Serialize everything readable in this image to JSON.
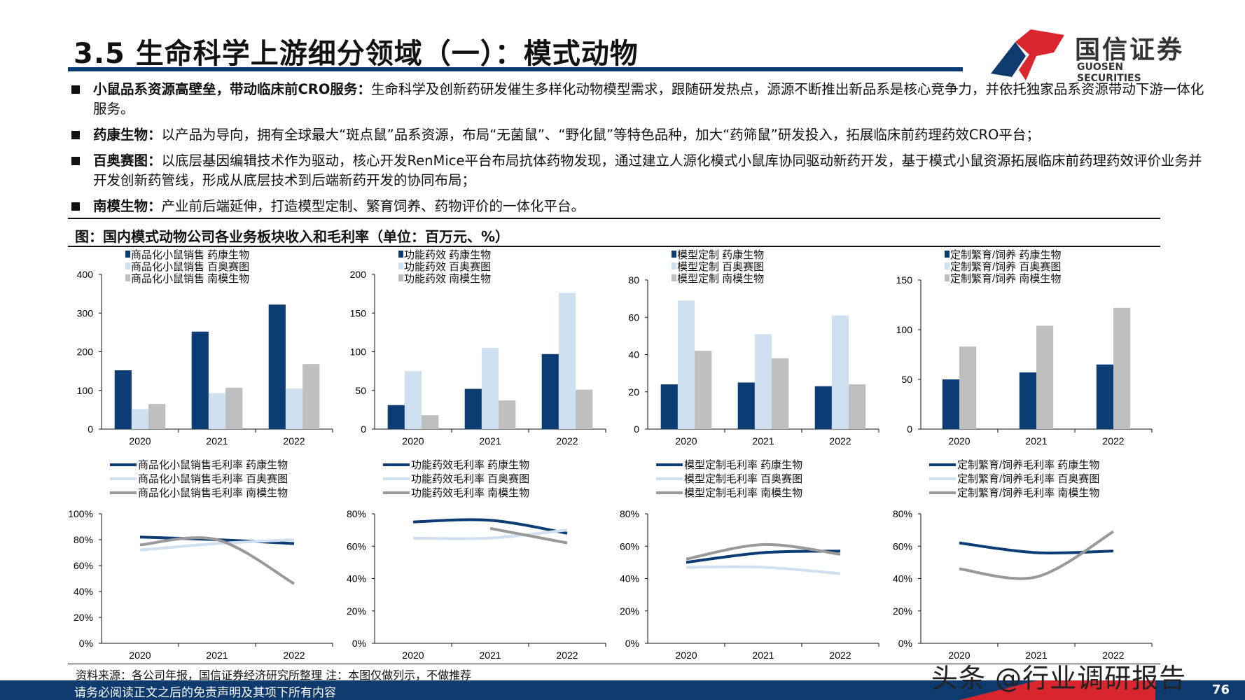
{
  "header": {
    "title": "3.5 生命科学上游细分领域（一）：模式动物",
    "logo_cn": "国信证券",
    "logo_en": "GUOSEN SECURITIES"
  },
  "bullets": [
    {
      "bold": "小鼠品系资源高壁垒，带动临床前CRO服务：",
      "text": "生命科学及创新药研发催生多样化动物模型需求，跟随研发热点，源源不断推出新品系是核心竞争力，并依托独家品系资源带动下游一体化服务。"
    },
    {
      "bold": "药康生物：",
      "text": "以产品为导向，拥有全球最大“斑点鼠”品系资源，布局“无菌鼠”、“野化鼠”等特色品种，加大“药筛鼠”研发投入，拓展临床前药理药效CRO平台；"
    },
    {
      "bold": "百奥赛图：",
      "text": "以底层基因编辑技术作为驱动，核心开发RenMice平台布局抗体药物发现，通过建立人源化模式小鼠库协同驱动新药开发，基于模式小鼠资源拓展临床前药理药效评价业务并开发创新药管线，形成从底层技术到后端新药开发的协同布局；"
    },
    {
      "bold": "南模生物：",
      "text": "产业前后端延伸，打造模型定制、繁育饲养、药物评价的一体化平台。"
    }
  ],
  "figure_title": "图：国内模式动物公司各业务板块收入和毛利率（单位：百万元、%）",
  "colors": {
    "yaokang": "#0b3d74",
    "baiao": "#cfe0f1",
    "nanmo": "#bfbfbf",
    "nanmo_line": "#999999",
    "footer": "#0e3a6e",
    "accent_red": "#d9262e"
  },
  "chart_data": [
    {
      "type": "bar",
      "categories": [
        "2020",
        "2021",
        "2022"
      ],
      "ylim": [
        0,
        400
      ],
      "yticks": [
        0,
        100,
        200,
        300,
        400
      ],
      "legend_placement": "top",
      "series": [
        {
          "name": "商品化小鼠销售 药康生物",
          "values": [
            152,
            252,
            322
          ]
        },
        {
          "name": "商品化小鼠销售 百奥赛图",
          "values": [
            52,
            93,
            105
          ]
        },
        {
          "name": "商品化小鼠销售 南模生物",
          "values": [
            65,
            107,
            168
          ]
        }
      ]
    },
    {
      "type": "bar",
      "categories": [
        "2020",
        "2021",
        "2022"
      ],
      "ylim": [
        0,
        200
      ],
      "yticks": [
        0,
        50,
        100,
        150,
        200
      ],
      "legend_placement": "top",
      "series": [
        {
          "name": "功能药效 药康生物",
          "values": [
            31,
            52,
            97
          ]
        },
        {
          "name": "功能药效 百奥赛图",
          "values": [
            75,
            105,
            176
          ]
        },
        {
          "name": "功能药效 南模生物",
          "values": [
            18,
            37,
            51
          ]
        }
      ]
    },
    {
      "type": "bar",
      "categories": [
        "2020",
        "2021",
        "2022"
      ],
      "ylim": [
        0,
        80
      ],
      "yticks": [
        0,
        20,
        40,
        60,
        80
      ],
      "legend_placement": "top",
      "series": [
        {
          "name": "模型定制 药康生物",
          "values": [
            24,
            25,
            23
          ]
        },
        {
          "name": "模型定制 百奥赛图",
          "values": [
            69,
            51,
            61
          ]
        },
        {
          "name": "模型定制 南模生物",
          "values": [
            42,
            38,
            24
          ]
        }
      ]
    },
    {
      "type": "bar",
      "categories": [
        "2020",
        "2021",
        "2022"
      ],
      "ylim": [
        0,
        150
      ],
      "yticks": [
        0,
        50,
        100,
        150
      ],
      "legend_placement": "top",
      "series": [
        {
          "name": "定制繁育/饲养 药康生物",
          "values": [
            50,
            57,
            65
          ]
        },
        {
          "name": "定制繁育/饲养 百奥赛图",
          "values": [
            null,
            null,
            null
          ]
        },
        {
          "name": "定制繁育/饲养 南模生物",
          "values": [
            83,
            104,
            122
          ]
        }
      ]
    },
    {
      "type": "line",
      "categories": [
        "2020",
        "2021",
        "2022"
      ],
      "ylim": [
        0,
        100
      ],
      "yticks": [
        "0%",
        "20%",
        "40%",
        "60%",
        "80%",
        "100%"
      ],
      "legend_placement": "top",
      "series": [
        {
          "name": "商品化小鼠销售毛利率 药康生物",
          "values": [
            82,
            80,
            77
          ]
        },
        {
          "name": "商品化小鼠销售毛利率 百奥赛图",
          "values": [
            72,
            77,
            80
          ]
        },
        {
          "name": "商品化小鼠销售毛利率 南模生物",
          "values": [
            76,
            80,
            46
          ]
        }
      ]
    },
    {
      "type": "line",
      "categories": [
        "2020",
        "2021",
        "2022"
      ],
      "ylim": [
        0,
        80
      ],
      "yticks": [
        "0%",
        "20%",
        "40%",
        "60%",
        "80%"
      ],
      "legend_placement": "top",
      "series": [
        {
          "name": "功能药效毛利率 药康生物",
          "values": [
            75,
            76,
            68
          ]
        },
        {
          "name": "功能药效毛利率 百奥赛图",
          "values": [
            65,
            65,
            70
          ]
        },
        {
          "name": "功能药效毛利率 南模生物",
          "values": [
            null,
            71,
            62
          ]
        }
      ]
    },
    {
      "type": "line",
      "categories": [
        "2020",
        "2021",
        "2022"
      ],
      "ylim": [
        0,
        80
      ],
      "yticks": [
        "0%",
        "20%",
        "40%",
        "60%",
        "80%"
      ],
      "legend_placement": "top",
      "series": [
        {
          "name": "模型定制毛利率 药康生物",
          "values": [
            50,
            56,
            57
          ]
        },
        {
          "name": "模型定制毛利率 百奥赛图",
          "values": [
            47,
            47,
            43
          ]
        },
        {
          "name": "模型定制毛利率 南模生物",
          "values": [
            52,
            61,
            55
          ]
        }
      ]
    },
    {
      "type": "line",
      "categories": [
        "2020",
        "2021",
        "2022"
      ],
      "ylim": [
        0,
        80
      ],
      "yticks": [
        "0%",
        "20%",
        "40%",
        "60%",
        "80%"
      ],
      "legend_placement": "top",
      "series": [
        {
          "name": "定制繁育/饲养毛利率 药康生物",
          "values": [
            62,
            56,
            57
          ]
        },
        {
          "name": "定制繁育/饲养毛利率 百奥赛图",
          "values": [
            null,
            null,
            null
          ]
        },
        {
          "name": "定制繁育/饲养毛利率 南模生物",
          "values": [
            46,
            41,
            69
          ]
        }
      ]
    }
  ],
  "source": "资料来源：各公司年报，国信证券经济研究所整理 注：本图仅做列示，不做推荐",
  "footer": {
    "disclaimer": "请务必阅读正文之后的免责声明及其项下所有内容",
    "page": "76"
  },
  "watermark": "头条 @行业调研报告"
}
